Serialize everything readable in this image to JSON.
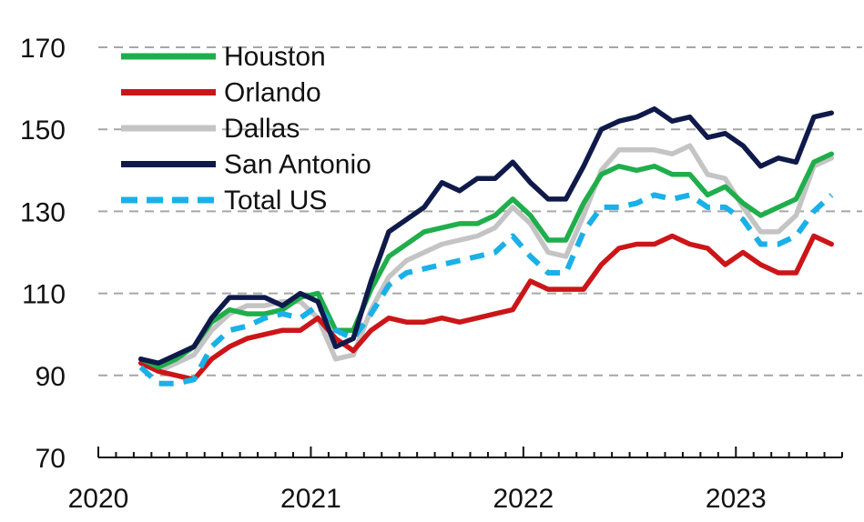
{
  "chart_data": {
    "type": "line",
    "title": "",
    "xlabel": "",
    "ylabel": "",
    "ylim": [
      70,
      170
    ],
    "yticks": [
      70,
      90,
      110,
      130,
      150,
      170
    ],
    "xlim": [
      2020.0,
      2023.5
    ],
    "xticks": [
      2020,
      2021,
      2022,
      2023
    ],
    "xtick_labels": [
      "2020",
      "2021",
      "2022",
      "2023"
    ],
    "grid": "horizontal dashed",
    "legend_position": "top-left",
    "series": [
      {
        "name": "Houston",
        "color": "#1fae4b",
        "style": "solid",
        "x": [
          2020.2,
          2020.2833,
          2020.3667,
          2020.45,
          2020.5333,
          2020.6167,
          2020.7,
          2020.7833,
          2020.8667,
          2020.95,
          2021.0333,
          2021.1167,
          2021.2,
          2021.2833,
          2021.3667,
          2021.45,
          2021.5333,
          2021.6167,
          2021.7,
          2021.7833,
          2021.8667,
          2021.95,
          2022.0333,
          2022.1167,
          2022.2,
          2022.2833,
          2022.3667,
          2022.45,
          2022.5333,
          2022.6167,
          2022.7,
          2022.7833,
          2022.8667,
          2022.95,
          2023.0333,
          2023.1167,
          2023.2,
          2023.2833,
          2023.3667,
          2023.45
        ],
        "values": [
          94,
          92,
          94,
          97,
          103,
          106,
          105,
          105,
          106,
          109,
          110,
          101,
          101,
          111,
          119,
          122,
          125,
          126,
          127,
          127,
          129,
          133,
          129,
          123,
          123,
          132,
          139,
          141,
          140,
          141,
          139,
          139,
          134,
          136,
          132,
          129,
          131,
          133,
          142,
          144
        ]
      },
      {
        "name": "Orlando",
        "color": "#cc1518",
        "style": "solid",
        "x": [
          2020.2,
          2020.2833,
          2020.3667,
          2020.45,
          2020.5333,
          2020.6167,
          2020.7,
          2020.7833,
          2020.8667,
          2020.95,
          2021.0333,
          2021.1167,
          2021.2,
          2021.2833,
          2021.3667,
          2021.45,
          2021.5333,
          2021.6167,
          2021.7,
          2021.7833,
          2021.8667,
          2021.95,
          2022.0333,
          2022.1167,
          2022.2,
          2022.2833,
          2022.3667,
          2022.45,
          2022.5333,
          2022.6167,
          2022.7,
          2022.7833,
          2022.8667,
          2022.95,
          2023.0333,
          2023.1167,
          2023.2,
          2023.2833,
          2023.3667,
          2023.45
        ],
        "values": [
          93,
          91,
          90,
          89,
          94,
          97,
          99,
          100,
          101,
          101,
          104,
          99,
          96,
          101,
          104,
          103,
          103,
          104,
          103,
          104,
          105,
          106,
          113,
          111,
          111,
          111,
          117,
          121,
          122,
          122,
          124,
          122,
          121,
          117,
          120,
          117,
          115,
          115,
          124,
          122
        ]
      },
      {
        "name": "Dallas",
        "color": "#c4c4c4",
        "style": "solid",
        "x": [
          2020.2,
          2020.2833,
          2020.3667,
          2020.45,
          2020.5333,
          2020.6167,
          2020.7,
          2020.7833,
          2020.8667,
          2020.95,
          2021.0333,
          2021.1167,
          2021.2,
          2021.2833,
          2021.3667,
          2021.45,
          2021.5333,
          2021.6167,
          2021.7,
          2021.7833,
          2021.8667,
          2021.95,
          2022.0333,
          2022.1167,
          2022.2,
          2022.2833,
          2022.3667,
          2022.45,
          2022.5333,
          2022.6167,
          2022.7,
          2022.7833,
          2022.8667,
          2022.95,
          2023.0333,
          2023.1167,
          2023.2,
          2023.2833,
          2023.3667,
          2023.45
        ],
        "values": [
          93,
          91,
          93,
          95,
          101,
          105,
          107,
          107,
          108,
          108,
          104,
          94,
          95,
          106,
          114,
          118,
          120,
          122,
          123,
          124,
          126,
          131,
          127,
          120,
          119,
          129,
          140,
          145,
          145,
          145,
          144,
          146,
          139,
          138,
          131,
          125,
          125,
          129,
          141,
          143
        ]
      },
      {
        "name": "San Antonio",
        "color": "#0f1a4a",
        "style": "solid",
        "x": [
          2020.2,
          2020.2833,
          2020.3667,
          2020.45,
          2020.5333,
          2020.6167,
          2020.7,
          2020.7833,
          2020.8667,
          2020.95,
          2021.0333,
          2021.1167,
          2021.2,
          2021.2833,
          2021.3667,
          2021.45,
          2021.5333,
          2021.6167,
          2021.7,
          2021.7833,
          2021.8667,
          2021.95,
          2022.0333,
          2022.1167,
          2022.2,
          2022.2833,
          2022.3667,
          2022.45,
          2022.5333,
          2022.6167,
          2022.7,
          2022.7833,
          2022.8667,
          2022.95,
          2023.0333,
          2023.1167,
          2023.2,
          2023.2833,
          2023.3667,
          2023.45
        ],
        "values": [
          94,
          93,
          95,
          97,
          104,
          109,
          109,
          109,
          107,
          110,
          108,
          97,
          99,
          113,
          125,
          128,
          131,
          137,
          135,
          138,
          138,
          142,
          137,
          133,
          133,
          141,
          150,
          152,
          153,
          155,
          152,
          153,
          148,
          149,
          146,
          141,
          143,
          142,
          153,
          154
        ]
      },
      {
        "name": "Total US",
        "color": "#1ab0e8",
        "style": "dashed",
        "x": [
          2020.2,
          2020.2833,
          2020.3667,
          2020.45,
          2020.5333,
          2020.6167,
          2020.7,
          2020.7833,
          2020.8667,
          2020.95,
          2021.0333,
          2021.1167,
          2021.2,
          2021.2833,
          2021.3667,
          2021.45,
          2021.5333,
          2021.6167,
          2021.7,
          2021.7833,
          2021.8667,
          2021.95,
          2022.0333,
          2022.1167,
          2022.2,
          2022.2833,
          2022.3667,
          2022.45,
          2022.5333,
          2022.6167,
          2022.7,
          2022.7833,
          2022.8667,
          2022.95,
          2023.0333,
          2023.1167,
          2023.2,
          2023.2833,
          2023.3667,
          2023.45
        ],
        "values": [
          92,
          88,
          88,
          89,
          97,
          101,
          102,
          104,
          105,
          104,
          107,
          101,
          99,
          105,
          112,
          115,
          116,
          117,
          118,
          119,
          120,
          124,
          119,
          115,
          115,
          125,
          131,
          131,
          132,
          134,
          133,
          134,
          131,
          131,
          128,
          122,
          122,
          124,
          130,
          134
        ]
      }
    ]
  }
}
